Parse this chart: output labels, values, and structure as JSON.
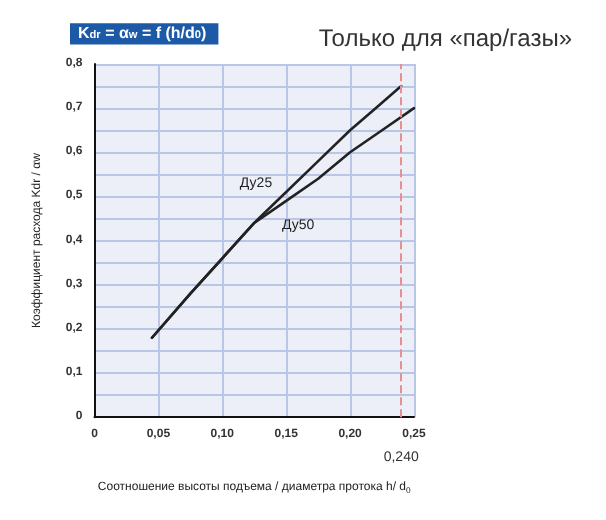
{
  "chart_data": {
    "type": "line",
    "title": "Только для «пар/газы»",
    "subtitle": "K$_{dr}$ = α$_{w}$ = f (h/d$_{0}$)",
    "xlabel": "Соотношение высоты подъема / диаметра протока h/ d$_{0}$",
    "ylabel": "Коэффициент расхода Kdr / αw",
    "series": [
      {
        "name": "Ду25",
        "color": "#222222",
        "x": [
          0.045,
          0.075,
          0.1,
          0.125,
          0.15,
          0.175,
          0.2,
          0.22,
          0.24
        ],
        "values": [
          0.18,
          0.28,
          0.36,
          0.44,
          0.51,
          0.58,
          0.65,
          0.7,
          0.75
        ]
      },
      {
        "name": "Ду50",
        "color": "#222222",
        "x": [
          0.045,
          0.075,
          0.1,
          0.125,
          0.15,
          0.175,
          0.2,
          0.225,
          0.25
        ],
        "values": [
          0.18,
          0.28,
          0.36,
          0.44,
          0.49,
          0.54,
          0.6,
          0.65,
          0.7
        ]
      }
    ],
    "xlim": [
      0,
      0.25
    ],
    "ylim": [
      0,
      0.8
    ],
    "xticks": [
      0,
      {
        "value": 0.05,
        "label": "0,05"
      },
      {
        "value": 0.1,
        "label": "0,10"
      },
      {
        "value": 0.15,
        "label": "0,15"
      },
      {
        "value": 0.2,
        "label": "0,20"
      },
      {
        "value": 0.25,
        "label": "0,25"
      }
    ],
    "yticks": [
      0,
      {
        "value": 0.05,
        "label": null
      },
      {
        "value": 0.1,
        "label": "0,1"
      },
      {
        "value": 0.15,
        "label": null
      },
      {
        "value": 0.2,
        "label": "0,2"
      },
      {
        "value": 0.25,
        "label": null
      },
      {
        "value": 0.3,
        "label": "0,3"
      },
      {
        "value": 0.35,
        "label": null
      },
      {
        "value": 0.4,
        "label": "0,4"
      },
      {
        "value": 0.45,
        "label": null
      },
      {
        "value": 0.5,
        "label": "0,5"
      },
      {
        "value": 0.55,
        "label": null
      },
      {
        "value": 0.6,
        "label": "0,6"
      },
      {
        "value": 0.65,
        "label": null
      },
      {
        "value": 0.7,
        "label": "0,7"
      },
      {
        "value": 0.75,
        "label": null
      },
      {
        "value": 0.8,
        "label": "0,8"
      }
    ],
    "ref_lines": [
      {
        "axis": "x",
        "value": 0.24,
        "label": "0,240",
        "color": "#e89090",
        "line_style": "dashed"
      }
    ],
    "grid": true,
    "marker": "none",
    "line_style": "solid",
    "legend": false
  }
}
